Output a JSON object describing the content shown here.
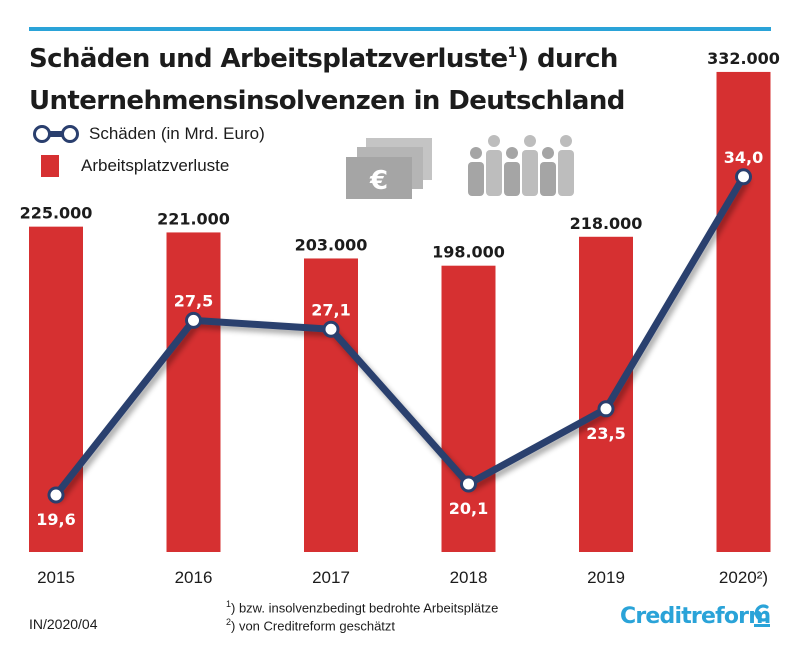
{
  "title": {
    "line1_pre": "Schäden und Arbeitsplatzverluste",
    "line1_sup": "1",
    "line1_post": ") durch",
    "line2": "Unternehmensinsolvenzen in Deutschland"
  },
  "legend": {
    "line_label": "Schäden (in Mrd. Euro)",
    "bar_label": "Arbeitsplatzverluste"
  },
  "icons": {
    "money": "euro-banknotes-icon",
    "people": "people-group-icon",
    "money_symbol": "€"
  },
  "chart_data": {
    "type": "bar",
    "categories": [
      "2015",
      "2016",
      "2017",
      "2018",
      "2019",
      "2020"
    ],
    "category_suffix": {
      "5": "²)"
    },
    "series": [
      {
        "name": "Arbeitsplatzverluste",
        "type": "bar",
        "values": [
          225000,
          221000,
          203000,
          198000,
          218000,
          332000
        ],
        "labels": [
          "225.000",
          "221.000",
          "203.000",
          "198.000",
          "218.000",
          "332.000"
        ],
        "color": "#d63031"
      },
      {
        "name": "Schäden (in Mrd. Euro)",
        "type": "line",
        "values": [
          19.6,
          27.5,
          27.1,
          20.1,
          23.5,
          34.0
        ],
        "labels": [
          "19,6",
          "27,5",
          "27,1",
          "20,1",
          "23,5",
          "34,0"
        ],
        "color": "#2a3f6e"
      }
    ],
    "grid": false
  },
  "footer": {
    "code": "IN/2020/04",
    "note1_sup": "1",
    "note1": ") bzw. insolvenzbedingt bedrohte Arbeitsplätze",
    "note2_sup": "2",
    "note2": ") von Creditreform geschätzt",
    "logo": "Creditreform"
  },
  "colors": {
    "accent": "#2aa3d8",
    "bar": "#d63031",
    "line": "#2a3f6e",
    "icon": "#a5a5a5"
  }
}
